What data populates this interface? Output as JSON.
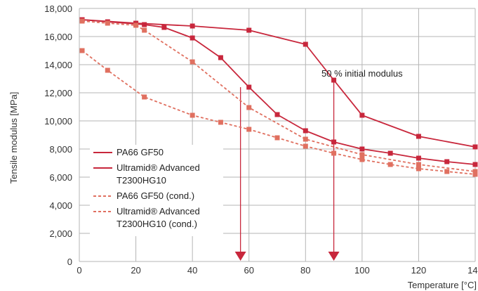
{
  "chart_data": {
    "type": "line",
    "xlabel": "Temperature [°C]",
    "ylabel": "Tensile modulus [MPa]",
    "xlim": [
      0,
      140
    ],
    "ylim": [
      0,
      18000
    ],
    "x_ticks": [
      "0",
      "20",
      "40",
      "60",
      "80",
      "100",
      "120",
      "140"
    ],
    "x_tick_values": [
      0,
      20,
      40,
      60,
      80,
      100,
      120,
      140
    ],
    "y_ticks": [
      "0",
      "2,000",
      "4,000",
      "6,000",
      "8,000",
      "10,000",
      "12,000",
      "14,000",
      "16,000",
      "18,000"
    ],
    "y_tick_values": [
      0,
      2000,
      4000,
      6000,
      8000,
      10000,
      12000,
      14000,
      16000,
      18000
    ],
    "grid": true,
    "legend_position": "left",
    "series": [
      {
        "name": "PA66 GF50",
        "color": "#c8273c",
        "dashed": false,
        "points": [
          [
            1,
            17200
          ],
          [
            10,
            17050
          ],
          [
            20,
            16900
          ],
          [
            23,
            16850
          ],
          [
            30,
            16650
          ],
          [
            40,
            15900
          ],
          [
            50,
            14500
          ],
          [
            60,
            12400
          ],
          [
            70,
            10450
          ],
          [
            80,
            9300
          ],
          [
            90,
            8500
          ],
          [
            100,
            8000
          ],
          [
            110,
            7700
          ],
          [
            120,
            7350
          ],
          [
            130,
            7100
          ],
          [
            140,
            6900
          ]
        ]
      },
      {
        "name": "Ultramid® Advanced T2300HG10",
        "color": "#c8273c",
        "dashed": false,
        "points": [
          [
            1,
            17200
          ],
          [
            20,
            16950
          ],
          [
            40,
            16750
          ],
          [
            60,
            16450
          ],
          [
            80,
            15450
          ],
          [
            90,
            12900
          ],
          [
            100,
            10400
          ],
          [
            120,
            8900
          ],
          [
            140,
            8150
          ]
        ]
      },
      {
        "name": "PA66 GF50 (cond.)",
        "color": "#e07060",
        "dashed": true,
        "points": [
          [
            1,
            15000
          ],
          [
            10,
            13600
          ],
          [
            23,
            11700
          ],
          [
            40,
            10400
          ],
          [
            50,
            9900
          ],
          [
            60,
            9400
          ],
          [
            70,
            8800
          ],
          [
            80,
            8200
          ],
          [
            90,
            7700
          ],
          [
            100,
            7250
          ],
          [
            110,
            6900
          ],
          [
            120,
            6600
          ],
          [
            130,
            6400
          ],
          [
            140,
            6200
          ]
        ]
      },
      {
        "name": "Ultramid® Advanced T2300HG10 (cond.)",
        "color": "#e07060",
        "dashed": true,
        "points": [
          [
            1,
            17100
          ],
          [
            10,
            16950
          ],
          [
            20,
            16800
          ],
          [
            23,
            16450
          ],
          [
            40,
            14200
          ],
          [
            60,
            10950
          ],
          [
            80,
            8700
          ],
          [
            100,
            7600
          ],
          [
            120,
            6900
          ],
          [
            140,
            6400
          ]
        ]
      }
    ],
    "legend": [
      {
        "text": [
          "PA66 GF50"
        ],
        "dashed": false,
        "color": "#c8273c"
      },
      {
        "text": [
          "Ultramid® Advanced",
          "T2300HG10"
        ],
        "dashed": false,
        "color": "#c8273c"
      },
      {
        "text": [
          "PA66 GF50 (cond.)"
        ],
        "dashed": true,
        "color": "#e07060"
      },
      {
        "text": [
          "Ultramid® Advanced",
          "T2300HG10 (cond.)"
        ],
        "dashed": true,
        "color": "#e07060"
      }
    ],
    "annotations": [
      {
        "text": "50 % initial modulus",
        "x": 100,
        "y": 13400
      }
    ],
    "arrows": [
      {
        "x": 57,
        "y_from": 12400,
        "y_to": 0,
        "color": "#c8273c"
      },
      {
        "x": 90,
        "y_from": 12900,
        "y_to": 0,
        "color": "#c8273c"
      }
    ],
    "colors": {
      "grid": "#b5b5b5",
      "axis": "#888888"
    }
  }
}
